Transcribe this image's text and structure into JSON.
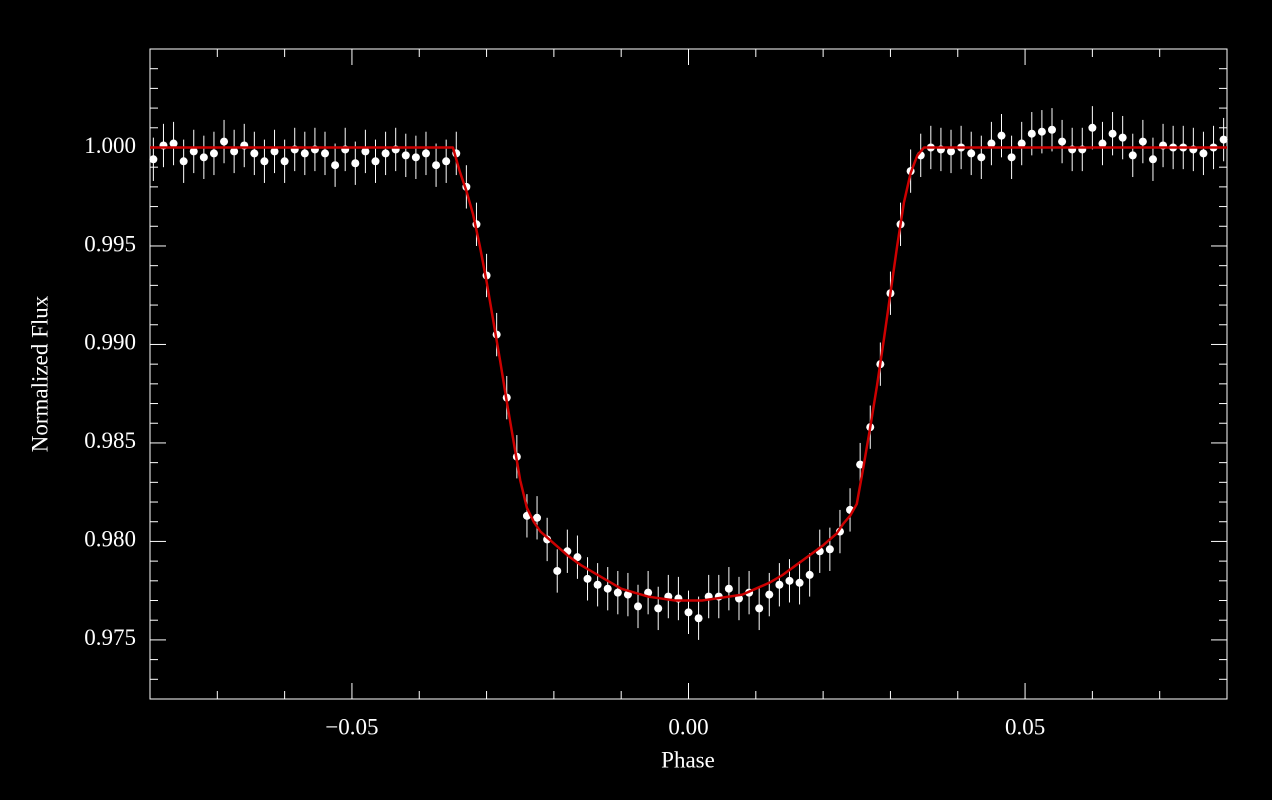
{
  "chart_data": {
    "type": "scatter",
    "xlabel": "Phase",
    "ylabel": "Normalized Flux",
    "xlim": [
      -0.08,
      0.08
    ],
    "ylim": [
      0.972,
      1.005
    ],
    "xticks": [
      {
        "value": -0.05,
        "label": "−0.05"
      },
      {
        "value": 0,
        "label": "0.00"
      },
      {
        "value": 0.05,
        "label": "0.05"
      }
    ],
    "yticks": [
      {
        "value": 0.975,
        "label": "0.975"
      },
      {
        "value": 0.98,
        "label": "0.980"
      },
      {
        "value": 0.985,
        "label": "0.985"
      },
      {
        "value": 0.99,
        "label": "0.990"
      },
      {
        "value": 0.995,
        "label": "0.995"
      },
      {
        "value": 1,
        "label": "1.000"
      }
    ],
    "xminorticks": [
      -0.07,
      -0.06,
      -0.04,
      -0.03,
      -0.02,
      -0.01,
      0.01,
      0.02,
      0.03,
      0.04,
      0.06,
      0.07
    ],
    "yminorticks": [
      0.973,
      0.974,
      0.976,
      0.977,
      0.978,
      0.979,
      0.981,
      0.982,
      0.983,
      0.984,
      0.986,
      0.987,
      0.988,
      0.989,
      0.991,
      0.992,
      0.993,
      0.994,
      0.996,
      0.997,
      0.998,
      0.999,
      1.001,
      1.002,
      1.003,
      1.004
    ],
    "series": [
      {
        "type": "scatter",
        "color": "#ffffff",
        "error": 0.0011,
        "x": [
          -0.0795,
          -0.078,
          -0.0765,
          -0.075,
          -0.0735,
          -0.072,
          -0.0705,
          -0.069,
          -0.0675,
          -0.066,
          -0.0645,
          -0.063,
          -0.0615,
          -0.06,
          -0.0585,
          -0.057,
          -0.0555,
          -0.054,
          -0.0525,
          -0.051,
          -0.0495,
          -0.048,
          -0.0465,
          -0.045,
          -0.0435,
          -0.042,
          -0.0405,
          -0.039,
          -0.0375,
          -0.036,
          -0.0345,
          -0.033,
          -0.0315,
          -0.03,
          -0.0285,
          -0.027,
          -0.0255,
          -0.024,
          -0.0225,
          -0.021,
          -0.0195,
          -0.018,
          -0.0165,
          -0.015,
          -0.0135,
          -0.012,
          -0.0105,
          -0.009,
          -0.0075,
          -0.006,
          -0.0045,
          -0.003,
          -0.0015,
          0,
          0.0015,
          0.003,
          0.0045,
          0.006,
          0.0075,
          0.009,
          0.0105,
          0.012,
          0.0135,
          0.015,
          0.0165,
          0.018,
          0.0195,
          0.021,
          0.0225,
          0.024,
          0.0255,
          0.027,
          0.0285,
          0.03,
          0.0315,
          0.033,
          0.0345,
          0.036,
          0.0375,
          0.039,
          0.0405,
          0.042,
          0.0435,
          0.045,
          0.0465,
          0.048,
          0.0495,
          0.051,
          0.0525,
          0.054,
          0.0555,
          0.057,
          0.0585,
          0.06,
          0.0615,
          0.063,
          0.0645,
          0.066,
          0.0675,
          0.069,
          0.0705,
          0.072,
          0.0735,
          0.075,
          0.0765,
          0.078,
          0.0795
        ],
        "values": [
          0.9994,
          1.0001,
          1.0002,
          0.9993,
          0.9998,
          0.9995,
          0.9997,
          1.0003,
          0.9998,
          1.0001,
          0.9997,
          0.9993,
          0.9998,
          0.9993,
          0.9999,
          0.9997,
          0.9999,
          0.9997,
          0.9991,
          0.9999,
          0.9992,
          0.9998,
          0.9993,
          0.9997,
          0.9999,
          0.9996,
          0.9995,
          0.9997,
          0.9991,
          0.9993,
          0.9997,
          0.998,
          0.9961,
          0.9935,
          0.9905,
          0.9873,
          0.9843,
          0.9813,
          0.9812,
          0.9801,
          0.9785,
          0.9795,
          0.9792,
          0.9781,
          0.9778,
          0.9776,
          0.9774,
          0.9773,
          0.9767,
          0.9774,
          0.9766,
          0.9772,
          0.9771,
          0.9764,
          0.9761,
          0.9772,
          0.9772,
          0.9776,
          0.9771,
          0.9774,
          0.9766,
          0.9773,
          0.9778,
          0.978,
          0.9779,
          0.9783,
          0.9795,
          0.9796,
          0.9805,
          0.9816,
          0.9839,
          0.9858,
          0.989,
          0.9926,
          0.9961,
          0.9988,
          0.9996,
          1,
          0.9999,
          0.9998,
          1,
          0.9997,
          0.9995,
          1.0002,
          1.0006,
          0.9995,
          1.0002,
          1.0007,
          1.0008,
          1.0009,
          1.0003,
          0.9999,
          0.9999,
          1.001,
          1.0002,
          1.0007,
          1.0005,
          0.9996,
          1.0003,
          0.9994,
          1.0001,
          1,
          1,
          0.9999,
          0.9997,
          1,
          1.0004
        ]
      },
      {
        "type": "line",
        "color": "#cc0000",
        "x": [
          -0.08,
          -0.035,
          -0.034,
          -0.033,
          -0.032,
          -0.031,
          -0.03,
          -0.029,
          -0.028,
          -0.027,
          -0.026,
          -0.025,
          -0.024,
          -0.023,
          -0.022,
          -0.02,
          -0.018,
          -0.016,
          -0.014,
          -0.012,
          -0.01,
          -0.008,
          -0.006,
          -0.004,
          -0.002,
          0,
          0.002,
          0.004,
          0.006,
          0.008,
          0.01,
          0.012,
          0.014,
          0.016,
          0.018,
          0.02,
          0.022,
          0.023,
          0.024,
          0.025,
          0.026,
          0.027,
          0.028,
          0.029,
          0.03,
          0.031,
          0.032,
          0.033,
          0.034,
          0.035,
          0.08
        ],
        "values": [
          1,
          1,
          0.9988,
          0.9978,
          0.9966,
          0.995,
          0.9932,
          0.9912,
          0.9892,
          0.9871,
          0.9851,
          0.9831,
          0.9817,
          0.981,
          0.9805,
          0.9799,
          0.9793,
          0.9788,
          0.9784,
          0.978,
          0.9776,
          0.9774,
          0.9772,
          0.9771,
          0.977,
          0.977,
          0.977,
          0.9771,
          0.9772,
          0.9773,
          0.9776,
          0.9779,
          0.9783,
          0.9788,
          0.9793,
          0.9798,
          0.9804,
          0.9809,
          0.9813,
          0.9819,
          0.9838,
          0.9858,
          0.9879,
          0.9902,
          0.9926,
          0.995,
          0.9972,
          0.9987,
          0.9996,
          1,
          1
        ]
      }
    ]
  }
}
